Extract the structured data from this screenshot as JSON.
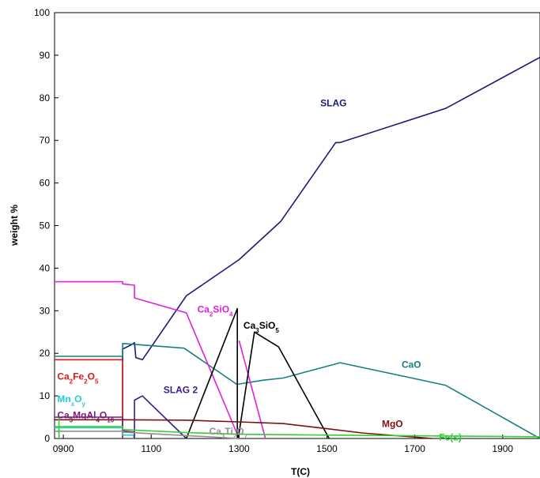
{
  "chart_data": {
    "type": "line",
    "xlabel": "T(C)",
    "ylabel": "weight %",
    "xlim": [
      880,
      1985
    ],
    "ylim": [
      0,
      100
    ],
    "x_ticks": [
      {
        "value": 900,
        "label": "0900"
      },
      {
        "value": 1100,
        "label": "1100"
      },
      {
        "value": 1300,
        "label": "1300"
      },
      {
        "value": 1500,
        "label": "1500"
      },
      {
        "value": 1700,
        "label": "1700"
      },
      {
        "value": 1900,
        "label": "1900"
      }
    ],
    "y_ticks": [
      0,
      10,
      20,
      30,
      40,
      50,
      60,
      70,
      80,
      90,
      100
    ],
    "grid": false,
    "series": [
      {
        "id": "slag",
        "color": "#1a1a7a",
        "label": [
          {
            "t": "SLAG",
            "s": false
          }
        ],
        "label_at": [
          1485,
          78
        ],
        "points": [
          [
            1035,
            0
          ],
          [
            1035,
            21
          ],
          [
            1055,
            22
          ],
          [
            1062,
            22.5
          ],
          [
            1065,
            19
          ],
          [
            1080,
            18.5
          ],
          [
            1180,
            33.5
          ],
          [
            1300,
            42
          ],
          [
            1395,
            51
          ],
          [
            1520,
            69.5
          ],
          [
            1530,
            69.5
          ],
          [
            1770,
            77.5
          ],
          [
            1985,
            89.5
          ]
        ]
      },
      {
        "id": "slag2",
        "color": "#3b1a8c",
        "label": [
          {
            "t": "SLAG 2",
            "s": false
          }
        ],
        "label_at": [
          1128,
          10.7
        ],
        "points": [
          [
            1062,
            0
          ],
          [
            1062,
            9
          ],
          [
            1080,
            10
          ],
          [
            1180,
            0
          ]
        ]
      },
      {
        "id": "cao",
        "color": "#168080",
        "label": [
          {
            "t": "CaO",
            "s": false
          }
        ],
        "label_at": [
          1670,
          16.6
        ],
        "points": [
          [
            880,
            19.3
          ],
          [
            1035,
            19.3
          ],
          [
            1035,
            22.3
          ],
          [
            1075,
            22
          ],
          [
            1175,
            21.2
          ],
          [
            1295,
            12.7
          ],
          [
            1355,
            13.7
          ],
          [
            1400,
            14.2
          ],
          [
            1530,
            17.8
          ],
          [
            1770,
            12.5
          ],
          [
            1985,
            0
          ]
        ]
      },
      {
        "id": "ca2sio4",
        "color": "#e020e0",
        "label": [
          {
            "t": "Ca",
            "s": false
          },
          {
            "t": "2",
            "s": true
          },
          {
            "t": "SiO",
            "s": false
          },
          {
            "t": "4",
            "s": true
          }
        ],
        "label_at": [
          1205,
          29.6
        ],
        "points": [
          [
            880,
            36.8
          ],
          [
            1035,
            36.8
          ],
          [
            1035,
            36.3
          ],
          [
            1062,
            36
          ],
          [
            1062,
            33
          ],
          [
            1180,
            29.5
          ],
          [
            1300,
            0
          ]
        ]
      },
      {
        "id": "ca2sio4b",
        "color": "#e020e0",
        "label": [],
        "label_at": [
          0,
          0
        ],
        "points": [
          [
            1300,
            23
          ],
          [
            1360,
            0
          ]
        ]
      },
      {
        "id": "ca3sio5",
        "color": "#000000",
        "label": [
          {
            "t": "Ca",
            "s": false
          },
          {
            "t": "3",
            "s": true
          },
          {
            "t": "SiO",
            "s": false
          },
          {
            "t": "5",
            "s": true
          }
        ],
        "label_at": [
          1310,
          25.8
        ],
        "points": [
          [
            1180,
            0
          ],
          [
            1296,
            30.5
          ],
          [
            1296,
            0
          ],
          [
            1298,
            0
          ],
          [
            1335,
            25
          ],
          [
            1390,
            21.5
          ],
          [
            1505,
            0
          ]
        ]
      },
      {
        "id": "ca2fe2o5",
        "color": "#e01818",
        "label": [
          {
            "t": "Ca",
            "s": false
          },
          {
            "t": "2",
            "s": true
          },
          {
            "t": "Fe",
            "s": false
          },
          {
            "t": "2",
            "s": true
          },
          {
            "t": "O",
            "s": false
          },
          {
            "t": "5",
            "s": true
          }
        ],
        "label_at": [
          886,
          13.8
        ],
        "points": [
          [
            880,
            18.5
          ],
          [
            1035,
            18.5
          ],
          [
            1035,
            0
          ]
        ]
      },
      {
        "id": "mnxoy",
        "color": "#20d0d0",
        "label": [
          {
            "t": "Mn",
            "s": false
          },
          {
            "t": "x",
            "s": true
          },
          {
            "t": "O",
            "s": false
          },
          {
            "t": "y",
            "s": true
          }
        ],
        "label_at": [
          886,
          8.5
        ],
        "points": [
          [
            880,
            2.5
          ],
          [
            1035,
            2.5
          ],
          [
            1035,
            0.8
          ],
          [
            1060,
            0.8
          ],
          [
            1060,
            0
          ]
        ]
      },
      {
        "id": "ca3mgal4o10",
        "color": "#7a1a7a",
        "label": [
          {
            "t": "Ca",
            "s": false
          },
          {
            "t": "3",
            "s": true
          },
          {
            "t": "MgAl",
            "s": false
          },
          {
            "t": "4",
            "s": true
          },
          {
            "t": "O",
            "s": false
          },
          {
            "t": "10",
            "s": true
          }
        ],
        "label_at": [
          886,
          4.7
        ],
        "points": [
          [
            880,
            5
          ],
          [
            1035,
            5
          ],
          [
            1035,
            1.8
          ],
          [
            1062,
            1.5
          ],
          [
            1062,
            0
          ]
        ]
      },
      {
        "id": "cati2o5",
        "color": "#909090",
        "label": [
          {
            "t": "Ca",
            "s": false
          },
          {
            "t": "3",
            "s": true
          },
          {
            "t": "Ti",
            "s": false
          },
          {
            "t": "2",
            "s": true
          },
          {
            "t": "O",
            "s": false
          },
          {
            "t": "7",
            "s": true
          }
        ],
        "label_at": [
          1232,
          0.9
        ],
        "points": [
          [
            880,
            1.7
          ],
          [
            1035,
            1.7
          ],
          [
            1035,
            1.5
          ],
          [
            1300,
            0
          ]
        ]
      },
      {
        "id": "mgo",
        "color": "#7a1010",
        "label": [
          {
            "t": "MgO",
            "s": false
          }
        ],
        "label_at": [
          1625,
          2.7
        ],
        "points": [
          [
            880,
            4.4
          ],
          [
            1035,
            4.4
          ],
          [
            1180,
            4.3
          ],
          [
            1300,
            3.9
          ],
          [
            1400,
            3.5
          ],
          [
            1500,
            2.3
          ],
          [
            1580,
            1.3
          ],
          [
            1740,
            0
          ]
        ]
      },
      {
        "id": "fes",
        "color": "#30d030",
        "label": [
          {
            "t": "Fe(s)",
            "s": false
          }
        ],
        "label_at": [
          1755,
          -0.5
        ],
        "points": [
          [
            880,
            2.8
          ],
          [
            1035,
            2.8
          ],
          [
            1035,
            2.1
          ],
          [
            1180,
            1.4
          ],
          [
            1300,
            1.0
          ],
          [
            1500,
            0.8
          ],
          [
            1985,
            0.4
          ]
        ]
      },
      {
        "id": "green-drop",
        "color": "#30d030",
        "label": [],
        "label_at": [
          0,
          0
        ],
        "points": [
          [
            890,
            0
          ],
          [
            890,
            5
          ]
        ]
      }
    ]
  }
}
